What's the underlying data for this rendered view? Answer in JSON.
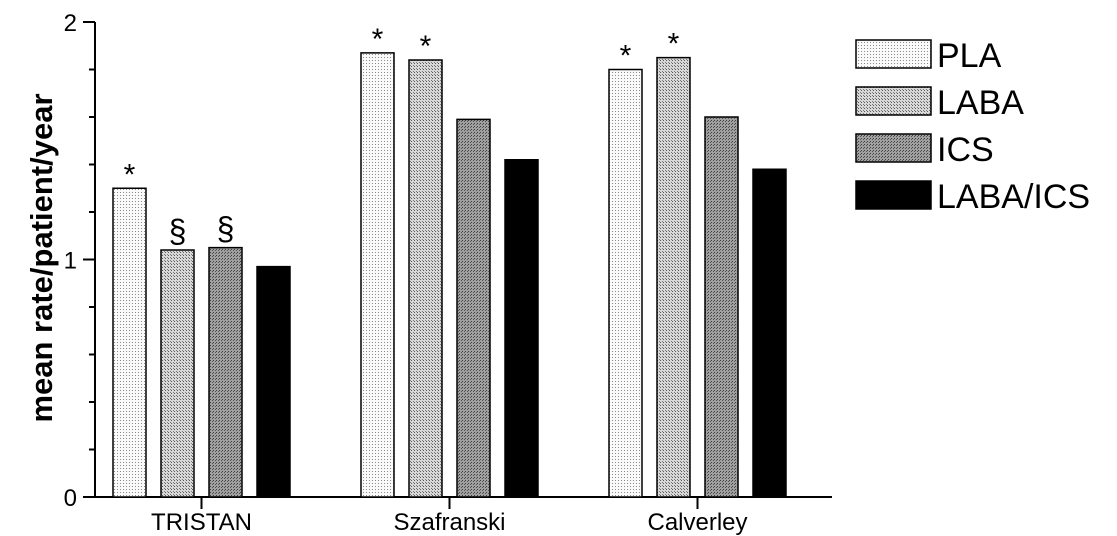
{
  "chart_data": {
    "type": "bar",
    "categories": [
      "TRISTAN",
      "Szafranski",
      "Calverley"
    ],
    "ylabel": "mean rate/patient/year",
    "xlabel": "",
    "ylim": [
      0,
      2
    ],
    "yticks": [
      "0",
      "1",
      "2"
    ],
    "grid": false,
    "legend_position": "right",
    "series": [
      {
        "name": "PLA",
        "values": [
          1.3,
          1.87,
          1.8
        ],
        "annotations": [
          "*",
          "*",
          "*"
        ]
      },
      {
        "name": "LABA",
        "values": [
          1.04,
          1.84,
          1.85
        ],
        "annotations": [
          "§",
          "*",
          "*"
        ]
      },
      {
        "name": "ICS",
        "values": [
          1.05,
          1.59,
          1.6
        ],
        "annotations": [
          "§",
          "",
          ""
        ]
      },
      {
        "name": "LABA/ICS",
        "values": [
          0.97,
          1.42,
          1.38
        ],
        "annotations": [
          "",
          "",
          ""
        ]
      }
    ],
    "colors": {
      "PLA": "#f2f2f2",
      "LABA": "#cfcfcf",
      "ICS": "#9c9c9c",
      "LABA/ICS": "#000000"
    }
  }
}
